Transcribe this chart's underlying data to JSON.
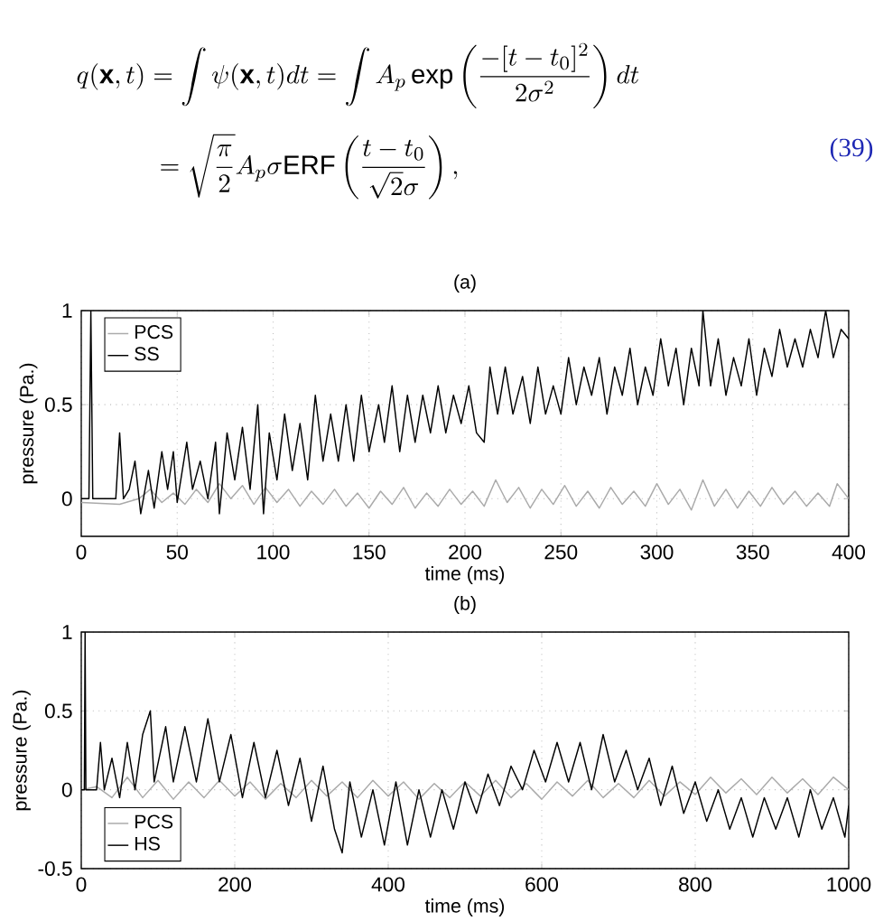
{
  "chart_data": [
    {
      "type": "line",
      "title": "(a)",
      "xlabel": "time (ms)",
      "ylabel": "pressure (Pa.)",
      "annotations": [
        "q(\\mathbf{x},t) = \\int \\psi(\\mathbf{x},t)dt = \\int A_p \\exp\\left(\\frac{-[t-t_0]^2}{2\\sigma^2}\\right)dt",
        "= \\sqrt{\\frac{\\pi}{2}}A_p\\sigma\\mathrm{ERF}\\left(\\frac{t-t_0}{\\sqrt{2}\\sigma}\\right),",
        "(39)"
      ],
      "xlim": [
        0,
        400
      ],
      "ylim": [
        -0.2,
        1
      ],
      "xticks": [
        0,
        50,
        100,
        150,
        200,
        250,
        300,
        350,
        400
      ],
      "yticks": [
        0,
        0.5,
        1
      ],
      "grid": true,
      "legend": "top left",
      "marker": "none",
      "line_style": "solid",
      "series": [
        {
          "name": "PCS",
          "color": "#aaaaaa",
          "x": [
            0,
            20,
            30,
            36,
            42,
            48,
            54,
            60,
            66,
            72,
            78,
            84,
            90,
            96,
            102,
            108,
            114,
            120,
            126,
            132,
            138,
            144,
            150,
            156,
            162,
            168,
            174,
            180,
            186,
            192,
            198,
            204,
            210,
            216,
            222,
            228,
            234,
            240,
            246,
            252,
            258,
            264,
            270,
            276,
            282,
            288,
            294,
            300,
            306,
            312,
            318,
            324,
            330,
            336,
            342,
            348,
            354,
            360,
            366,
            372,
            378,
            384,
            390,
            394,
            400
          ],
          "values": [
            -0.02,
            -0.03,
            0.0,
            0.05,
            -0.02,
            0.03,
            -0.03,
            0.05,
            -0.02,
            0.08,
            0.0,
            0.07,
            -0.03,
            0.06,
            -0.02,
            0.05,
            -0.04,
            0.04,
            -0.03,
            0.05,
            -0.04,
            0.03,
            -0.05,
            0.04,
            -0.03,
            0.06,
            -0.05,
            0.03,
            -0.04,
            0.05,
            -0.03,
            0.04,
            -0.04,
            0.1,
            -0.02,
            0.06,
            -0.05,
            0.05,
            -0.03,
            0.07,
            -0.04,
            0.04,
            -0.05,
            0.06,
            -0.03,
            0.04,
            -0.04,
            0.08,
            -0.03,
            0.05,
            -0.06,
            0.1,
            -0.04,
            0.05,
            -0.05,
            0.04,
            -0.04,
            0.06,
            -0.03,
            0.04,
            -0.04,
            0.03,
            -0.04,
            0.08,
            0.0
          ]
        },
        {
          "name": "SS",
          "color": "#000000",
          "x": [
            0,
            4,
            5,
            6,
            18,
            20,
            22,
            25,
            28,
            31,
            35,
            38,
            42,
            45,
            48,
            50,
            55,
            58,
            62,
            66,
            70,
            72,
            76,
            80,
            84,
            88,
            92,
            95,
            98,
            102,
            106,
            110,
            114,
            118,
            122,
            126,
            130,
            134,
            138,
            142,
            146,
            150,
            155,
            158,
            162,
            166,
            170,
            174,
            178,
            182,
            186,
            190,
            194,
            198,
            202,
            206,
            210,
            213,
            217,
            221,
            225,
            230,
            234,
            238,
            242,
            246,
            250,
            254,
            258,
            262,
            266,
            270,
            274,
            278,
            282,
            286,
            290,
            294,
            298,
            302,
            306,
            310,
            314,
            318,
            322,
            324,
            328,
            332,
            336,
            340,
            344,
            348,
            352,
            356,
            360,
            364,
            368,
            372,
            376,
            380,
            384,
            388,
            392,
            396,
            400
          ],
          "values": [
            0,
            0,
            1.0,
            0,
            0,
            0.35,
            0.0,
            0.05,
            0.2,
            -0.08,
            0.15,
            -0.05,
            0.25,
            0.05,
            0.25,
            -0.02,
            0.3,
            0.05,
            0.2,
            0.0,
            0.3,
            -0.08,
            0.35,
            0.1,
            0.38,
            0.05,
            0.5,
            -0.08,
            0.35,
            0.1,
            0.45,
            0.15,
            0.4,
            0.1,
            0.55,
            0.2,
            0.45,
            0.2,
            0.5,
            0.2,
            0.55,
            0.25,
            0.5,
            0.3,
            0.6,
            0.25,
            0.55,
            0.3,
            0.55,
            0.35,
            0.6,
            0.35,
            0.55,
            0.4,
            0.6,
            0.35,
            0.3,
            0.7,
            0.45,
            0.7,
            0.45,
            0.65,
            0.4,
            0.7,
            0.45,
            0.6,
            0.45,
            0.75,
            0.5,
            0.7,
            0.55,
            0.75,
            0.45,
            0.7,
            0.55,
            0.8,
            0.5,
            0.7,
            0.55,
            0.85,
            0.6,
            0.8,
            0.5,
            0.8,
            0.6,
            1.0,
            0.6,
            0.85,
            0.55,
            0.75,
            0.6,
            0.85,
            0.55,
            0.8,
            0.65,
            0.9,
            0.7,
            0.85,
            0.7,
            0.9,
            0.75,
            1.0,
            0.75,
            0.9,
            0.85
          ]
        }
      ]
    },
    {
      "type": "line",
      "title": "(b)",
      "xlabel": "time (ms)",
      "ylabel": "pressure (Pa.)",
      "xlim": [
        0,
        1000
      ],
      "ylim": [
        -0.5,
        1
      ],
      "xticks": [
        0,
        200,
        400,
        600,
        800,
        1000
      ],
      "yticks": [
        -0.5,
        0,
        0.5,
        1
      ],
      "grid": true,
      "legend": "bottom left",
      "marker": "none",
      "line_style": "solid",
      "series": [
        {
          "name": "PCS",
          "color": "#aaaaaa",
          "x": [
            0,
            20,
            40,
            60,
            80,
            100,
            120,
            140,
            160,
            180,
            200,
            220,
            240,
            260,
            280,
            300,
            320,
            340,
            360,
            380,
            400,
            420,
            440,
            460,
            480,
            500,
            520,
            540,
            560,
            580,
            600,
            620,
            640,
            660,
            680,
            700,
            720,
            740,
            760,
            780,
            800,
            820,
            840,
            860,
            880,
            900,
            920,
            940,
            960,
            980,
            1000
          ],
          "values": [
            0,
            0.02,
            -0.05,
            0.08,
            -0.05,
            0.06,
            -0.06,
            0.05,
            -0.05,
            0.06,
            -0.04,
            0.05,
            -0.06,
            0.04,
            -0.05,
            0.06,
            -0.04,
            0.05,
            -0.05,
            0.06,
            -0.04,
            0.05,
            -0.06,
            0.04,
            -0.05,
            0.05,
            -0.04,
            0.06,
            -0.05,
            0.04,
            -0.06,
            0.05,
            -0.04,
            0.06,
            -0.05,
            0.04,
            -0.05,
            0.06,
            -0.04,
            0.05,
            -0.03,
            0.08,
            -0.02,
            0.07,
            -0.03,
            0.08,
            -0.02,
            0.07,
            -0.03,
            0.08,
            0.0
          ]
        },
        {
          "name": "HS",
          "color": "#000000",
          "x": [
            0,
            4,
            5,
            6,
            20,
            25,
            30,
            40,
            50,
            60,
            70,
            80,
            90,
            95,
            110,
            120,
            135,
            150,
            165,
            180,
            195,
            210,
            225,
            240,
            255,
            270,
            285,
            300,
            315,
            330,
            340,
            350,
            365,
            380,
            395,
            410,
            425,
            440,
            455,
            470,
            485,
            500,
            515,
            530,
            545,
            560,
            575,
            590,
            605,
            620,
            635,
            650,
            665,
            680,
            695,
            710,
            725,
            740,
            755,
            770,
            785,
            800,
            815,
            830,
            845,
            860,
            875,
            890,
            905,
            920,
            935,
            950,
            965,
            980,
            995,
            1000
          ],
          "values": [
            0,
            0,
            1.0,
            0,
            0,
            0.3,
            0.0,
            0.2,
            -0.05,
            0.3,
            0.0,
            0.35,
            0.5,
            0.05,
            0.4,
            0.05,
            0.4,
            0.05,
            0.45,
            0.05,
            0.35,
            -0.05,
            0.3,
            -0.05,
            0.25,
            -0.1,
            0.2,
            -0.2,
            0.15,
            -0.25,
            -0.4,
            0.05,
            -0.3,
            0.0,
            -0.35,
            0.05,
            -0.35,
            0.0,
            -0.3,
            0.0,
            -0.25,
            0.05,
            -0.15,
            0.1,
            -0.1,
            0.15,
            0.0,
            0.25,
            0.05,
            0.3,
            0.05,
            0.3,
            0.0,
            0.35,
            0.05,
            0.25,
            0.0,
            0.2,
            -0.1,
            0.15,
            -0.15,
            0.05,
            -0.2,
            0.0,
            -0.25,
            -0.05,
            -0.3,
            -0.05,
            -0.25,
            -0.05,
            -0.3,
            0.0,
            -0.25,
            -0.05,
            -0.3,
            -0.1
          ]
        }
      ]
    }
  ]
}
